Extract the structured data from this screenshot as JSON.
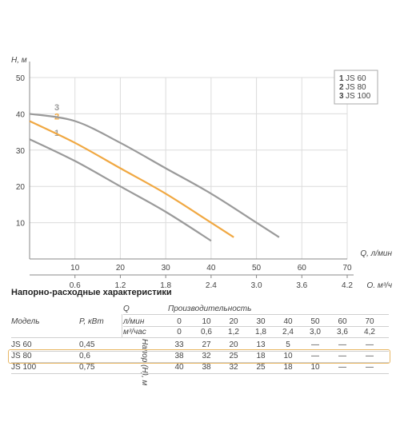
{
  "chart_data": {
    "type": "line",
    "y_axis_label": "H, м",
    "x_axis_label_primary": "Q, л/мин",
    "x_axis_label_secondary": "Q, м³/ч",
    "ylim": [
      0,
      50
    ],
    "xlim": [
      0,
      70
    ],
    "y_ticks": [
      "10",
      "20",
      "30",
      "40",
      "50"
    ],
    "x_ticks_primary": [
      "10",
      "20",
      "30",
      "40",
      "50",
      "60",
      "70"
    ],
    "x_ticks_secondary": [
      "0,6",
      "1,2",
      "1,8",
      "2,4",
      "3,0",
      "3,6",
      "4,2"
    ],
    "grid": true,
    "legend_position": "top-right",
    "series": [
      {
        "name": "JS 60",
        "number": "1",
        "color": "#9a9a9a",
        "x": [
          0,
          10,
          20,
          30,
          40
        ],
        "y": [
          33,
          27,
          20,
          13,
          5
        ]
      },
      {
        "name": "JS 80",
        "number": "2",
        "color": "#f0a842",
        "x": [
          0,
          10,
          20,
          30,
          40,
          45
        ],
        "y": [
          38,
          32,
          25,
          18,
          10,
          6
        ]
      },
      {
        "name": "JS 100",
        "number": "3",
        "color": "#9a9a9a",
        "x": [
          0,
          10,
          20,
          30,
          40,
          50,
          55
        ],
        "y": [
          40,
          38,
          32,
          25,
          18,
          10,
          6
        ]
      }
    ]
  },
  "table": {
    "title": "Напорно-расходные характеристики",
    "col_model": "Модель",
    "col_power": "P, кВт",
    "q_label": "Q",
    "productivity_label": "Производительность",
    "unit_lmin": "л/мин",
    "unit_m3h": "м³/час",
    "head_label": "Напор (H), м",
    "lmin_values": [
      "0",
      "10",
      "20",
      "30",
      "40",
      "50",
      "60",
      "70"
    ],
    "m3h_values": [
      "0",
      "0,6",
      "1,2",
      "1,8",
      "2,4",
      "3,0",
      "3,6",
      "4,2"
    ],
    "rows": [
      {
        "model": "JS 60",
        "power": "0,45",
        "values": [
          "33",
          "27",
          "20",
          "13",
          "5",
          "—",
          "—",
          "—"
        ]
      },
      {
        "model": "JS 80",
        "power": "0,6",
        "values": [
          "38",
          "32",
          "25",
          "18",
          "10",
          "—",
          "—",
          "—"
        ]
      },
      {
        "model": "JS 100",
        "power": "0,75",
        "values": [
          "40",
          "38",
          "32",
          "25",
          "18",
          "10",
          "—",
          "—"
        ]
      }
    ],
    "highlighted_row": "JS 80",
    "highlight_color": "#e8b765"
  }
}
